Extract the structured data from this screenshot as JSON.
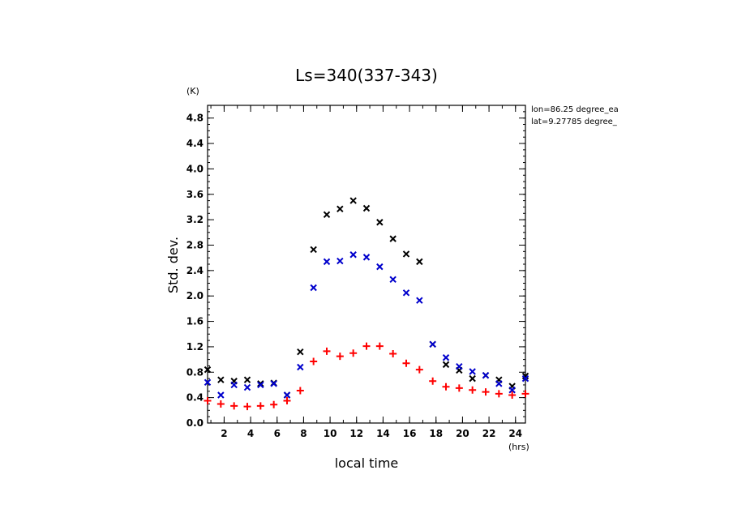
{
  "chart_data": {
    "type": "scatter",
    "title": "Ls=340(337-343)",
    "xlabel": "local time",
    "ylabel": "Std. dev.",
    "x_unit": "(hrs)",
    "y_unit": "(K)",
    "xlim": [
      0.75,
      24.75
    ],
    "ylim": [
      0.0,
      5.0
    ],
    "xticks": [
      2,
      4,
      6,
      8,
      10,
      12,
      14,
      16,
      18,
      20,
      22,
      24
    ],
    "yticks": [
      0.0,
      0.4,
      0.8,
      1.2,
      1.6,
      2.0,
      2.4,
      2.8,
      3.2,
      3.6,
      4.0,
      4.4,
      4.8
    ],
    "grid": false,
    "annotations": [
      "lon=86.25 degree_ea",
      "lat=9.27785 degree_"
    ],
    "x": [
      0.75,
      1.75,
      2.75,
      3.75,
      4.75,
      5.75,
      6.75,
      7.75,
      8.75,
      9.75,
      10.75,
      11.75,
      12.75,
      13.75,
      14.75,
      15.75,
      16.75,
      17.75,
      18.75,
      19.75,
      20.75,
      21.75,
      22.75,
      23.75,
      24.75
    ],
    "series": [
      {
        "color": "#000000",
        "marker": "x",
        "values": [
          0.84,
          0.68,
          0.66,
          0.68,
          0.62,
          0.63,
          0.44,
          1.12,
          2.73,
          3.28,
          3.37,
          3.5,
          3.38,
          3.16,
          2.9,
          2.66,
          2.54,
          1.24,
          0.92,
          0.83,
          0.7,
          0.75,
          0.68,
          0.58,
          0.74
        ]
      },
      {
        "color": "#0000cc",
        "marker": "x",
        "values": [
          0.64,
          0.44,
          0.6,
          0.56,
          0.6,
          0.62,
          0.44,
          0.88,
          2.13,
          2.54,
          2.55,
          2.65,
          2.61,
          2.46,
          2.26,
          2.05,
          1.93,
          1.24,
          1.03,
          0.89,
          0.81,
          0.75,
          0.62,
          0.52,
          0.7
        ]
      },
      {
        "color": "#ff0000",
        "marker": "+",
        "values": [
          0.35,
          0.3,
          0.27,
          0.26,
          0.27,
          0.29,
          0.35,
          0.51,
          0.97,
          1.13,
          1.05,
          1.1,
          1.21,
          1.21,
          1.09,
          0.94,
          0.84,
          0.66,
          0.57,
          0.55,
          0.52,
          0.49,
          0.46,
          0.44,
          0.46
        ]
      }
    ],
    "colors": {
      "axis": "#000000",
      "background": "#ffffff"
    }
  }
}
